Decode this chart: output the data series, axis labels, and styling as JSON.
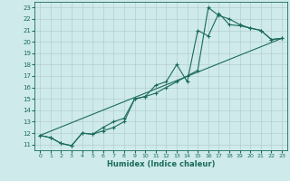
{
  "xlabel": "Humidex (Indice chaleur)",
  "bg_color": "#ceeaea",
  "grid_color": "#b0c8c8",
  "line_color": "#1a6b5a",
  "xlim": [
    -0.5,
    23.5
  ],
  "ylim": [
    10.5,
    23.5
  ],
  "xticks": [
    0,
    1,
    2,
    3,
    4,
    5,
    6,
    7,
    8,
    9,
    10,
    11,
    12,
    13,
    14,
    15,
    16,
    17,
    18,
    19,
    20,
    21,
    22,
    23
  ],
  "yticks": [
    11,
    12,
    13,
    14,
    15,
    16,
    17,
    18,
    19,
    20,
    21,
    22,
    23
  ],
  "line1_x": [
    0,
    1,
    2,
    3,
    4,
    5,
    6,
    7,
    8,
    9,
    10,
    11,
    12,
    13,
    14,
    15,
    16,
    17,
    18,
    19,
    20,
    21,
    22,
    23
  ],
  "line1_y": [
    11.8,
    11.6,
    11.1,
    10.9,
    12.0,
    11.9,
    12.5,
    13.0,
    13.3,
    15.0,
    15.2,
    16.2,
    16.5,
    18.0,
    16.5,
    21.0,
    20.5,
    22.5,
    21.5,
    21.4,
    21.2,
    21.0,
    20.2,
    20.3
  ],
  "line2_x": [
    0,
    1,
    2,
    3,
    4,
    5,
    6,
    7,
    8,
    9,
    10,
    11,
    12,
    13,
    14,
    15,
    16,
    17,
    18,
    19,
    20,
    21,
    22,
    23
  ],
  "line2_y": [
    11.8,
    11.6,
    11.1,
    10.9,
    12.0,
    11.9,
    12.2,
    12.5,
    13.0,
    15.0,
    15.2,
    15.5,
    16.0,
    16.5,
    17.0,
    17.5,
    23.0,
    22.3,
    22.0,
    21.5,
    21.2,
    21.0,
    20.2,
    20.3
  ],
  "line3_x": [
    0,
    23
  ],
  "line3_y": [
    11.8,
    20.3
  ]
}
